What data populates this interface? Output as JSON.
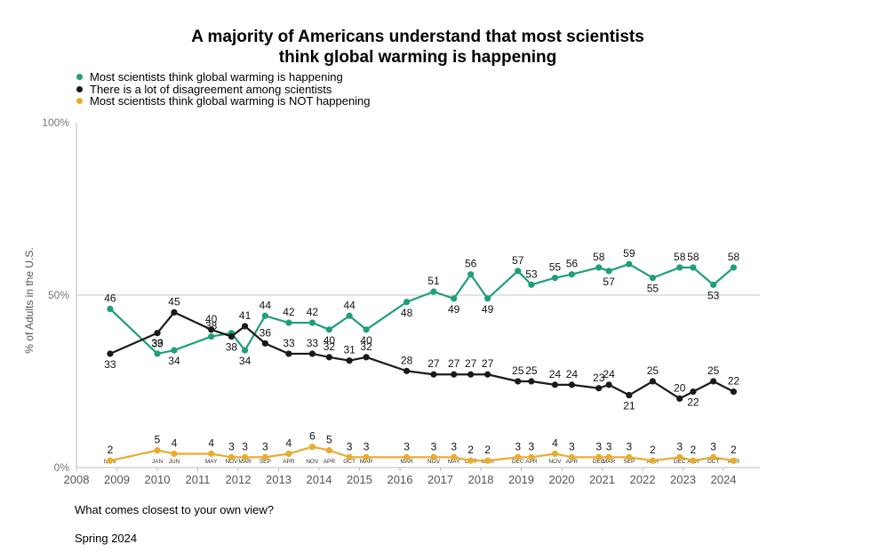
{
  "title_line1": "A majority of Americans understand that most scientists",
  "title_line2": "think global warming is happening",
  "question": "What comes closest to your own view?",
  "wave": "Spring 2024",
  "chart_data": {
    "type": "line",
    "ylabel": "% of Adults in the U.S.",
    "xlabel": "",
    "ylim": [
      0,
      100
    ],
    "y_ticks": [
      "0%",
      "50%",
      "100%"
    ],
    "x_year_ticks": [
      "2008",
      "2009",
      "2010",
      "2011",
      "2012",
      "2013",
      "2014",
      "2015",
      "2016",
      "2017",
      "2018",
      "2019",
      "2020",
      "2021",
      "2022",
      "2023",
      "2024"
    ],
    "reference_line": 50,
    "months": [
      "NOV",
      "JAN",
      "JUN",
      "MAY",
      "NOV",
      "MAR",
      "SEP",
      "APR",
      "NOV",
      "APR",
      "OCT",
      "MAR",
      "MAR",
      "NOV",
      "MAY",
      "OCT",
      "MAR",
      "DEC",
      "APR",
      "NOV",
      "APR",
      "DEC",
      "MAR",
      "SEP",
      "APR",
      "DEC",
      "APR",
      "OCT",
      "APR"
    ],
    "dates": [
      "2008-11",
      "2010-01",
      "2010-06",
      "2011-05",
      "2011-11",
      "2012-03",
      "2012-09",
      "2013-04",
      "2013-11",
      "2014-04",
      "2014-10",
      "2015-03",
      "2016-03",
      "2016-11",
      "2017-05",
      "2017-10",
      "2018-03",
      "2018-12",
      "2019-04",
      "2019-11",
      "2020-04",
      "2020-12",
      "2021-03",
      "2021-09",
      "2022-04",
      "2022-12",
      "2023-04",
      "2023-10",
      "2024-04"
    ],
    "series": [
      {
        "name": "Most scientists think global warming is happening",
        "color": "#1f9e7c",
        "values": [
          46,
          33,
          34,
          38,
          39,
          34,
          44,
          42,
          42,
          40,
          44,
          40,
          48,
          51,
          49,
          56,
          49,
          57,
          53,
          55,
          56,
          58,
          57,
          59,
          55,
          58,
          58,
          53,
          58
        ],
        "labels": [
          "46",
          "33",
          "34",
          "38",
          "",
          "34",
          "44",
          "42",
          "42",
          "40",
          "44",
          "40",
          "48",
          "51",
          "49",
          "56",
          "49",
          "57",
          "53",
          "55",
          "56",
          "58",
          "57",
          "59",
          "55",
          "58",
          "58",
          "53",
          "58"
        ]
      },
      {
        "name": "There is a lot of disagreement among scientists",
        "color": "#1a1a1a",
        "values": [
          33,
          39,
          45,
          40,
          38,
          41,
          36,
          33,
          33,
          32,
          31,
          32,
          28,
          27,
          27,
          27,
          27,
          25,
          25,
          24,
          24,
          23,
          24,
          21,
          25,
          20,
          22,
          25,
          22
        ],
        "labels": [
          "33",
          "39",
          "45",
          "40",
          "38",
          "41",
          "36",
          "33",
          "33",
          "32",
          "31",
          "32",
          "28",
          "27",
          "27",
          "27",
          "27",
          "25",
          "25",
          "24",
          "24",
          "23",
          "24",
          "21",
          "25",
          "20",
          "22",
          "25",
          "22"
        ]
      },
      {
        "name": "Most scientists think global warming is NOT happening",
        "color": "#e8ac2e",
        "values": [
          2,
          5,
          4,
          4,
          3,
          3,
          3,
          4,
          6,
          5,
          3,
          3,
          3,
          3,
          3,
          2,
          2,
          3,
          3,
          4,
          3,
          3,
          3,
          3,
          2,
          3,
          2,
          3,
          2
        ],
        "labels": [
          "2",
          "5",
          "4",
          "4",
          "3",
          "3",
          "3",
          "4",
          "6",
          "5",
          "3",
          "3",
          "3",
          "3",
          "3",
          "2",
          "2",
          "3",
          "3",
          "4",
          "3",
          "3",
          "3",
          "3",
          "2",
          "3",
          "2",
          "3",
          "2"
        ]
      }
    ]
  }
}
